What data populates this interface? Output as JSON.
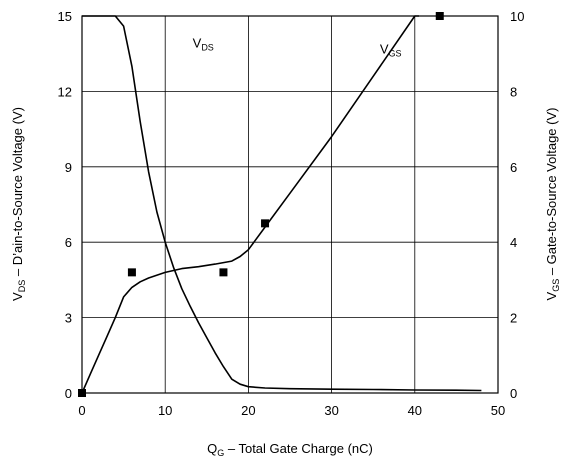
{
  "chart_data": {
    "type": "line",
    "x": {
      "label": "Q",
      "label_sub": "G",
      "label_rest": " – Total Gate Charge (nC)",
      "lim": [
        0,
        50
      ],
      "ticks": [
        0,
        10,
        20,
        30,
        40,
        50
      ]
    },
    "y_left": {
      "label": "V",
      "label_sub": "DS",
      "label_rest": " – D’ain-to-Source Voltage (V)",
      "lim": [
        0,
        15
      ],
      "ticks": [
        0,
        3,
        6,
        9,
        12,
        15
      ]
    },
    "y_right": {
      "label": "V",
      "label_sub": "GS",
      "label_rest": " – Gate-to-Source Voltage (V)",
      "lim": [
        0,
        10
      ],
      "ticks": [
        0,
        2,
        4,
        6,
        8,
        10
      ]
    },
    "grid": true,
    "series": [
      {
        "name": "V",
        "name_sub": "DS",
        "axis": "left",
        "color": "#000000",
        "x": [
          0,
          1,
          2,
          3,
          4,
          5,
          6,
          7,
          8,
          9,
          10,
          11,
          12,
          13,
          14,
          15,
          16,
          17,
          18,
          19,
          20,
          22,
          25,
          30,
          35,
          40,
          45,
          48
        ],
        "y": [
          15,
          15,
          15,
          15,
          15,
          14.6,
          13,
          10.8,
          8.8,
          7.2,
          6,
          5,
          4.15,
          3.45,
          2.8,
          2.2,
          1.6,
          1.05,
          0.55,
          0.35,
          0.25,
          0.2,
          0.17,
          0.15,
          0.14,
          0.12,
          0.11,
          0.1
        ]
      },
      {
        "name": "V",
        "name_sub": "GS",
        "axis": "right",
        "color": "#000000",
        "x": [
          0,
          1,
          2,
          3,
          4,
          5,
          6,
          7,
          8,
          10,
          12,
          14,
          16,
          18,
          19,
          20,
          22,
          25,
          30,
          35,
          40,
          40.5
        ],
        "y": [
          0,
          0.5,
          1,
          1.5,
          2,
          2.55,
          2.8,
          2.95,
          3.05,
          3.2,
          3.3,
          3.35,
          3.42,
          3.5,
          3.62,
          3.8,
          4.4,
          5.3,
          6.8,
          8.4,
          10,
          10
        ]
      }
    ],
    "markers": [
      {
        "axis": "right",
        "x": 0,
        "y": 0
      },
      {
        "axis": "right",
        "x": 6,
        "y": 3.2
      },
      {
        "axis": "right",
        "x": 17,
        "y": 3.2
      },
      {
        "axis": "right",
        "x": 22,
        "y": 4.5
      },
      {
        "axis": "right",
        "x": 43,
        "y": 10
      }
    ],
    "annotations": [
      {
        "series": 0,
        "x": 13.3,
        "y": 13.75,
        "axis": "left"
      },
      {
        "series": 1,
        "x": 35.8,
        "y": 9.0,
        "axis": "right"
      }
    ]
  }
}
